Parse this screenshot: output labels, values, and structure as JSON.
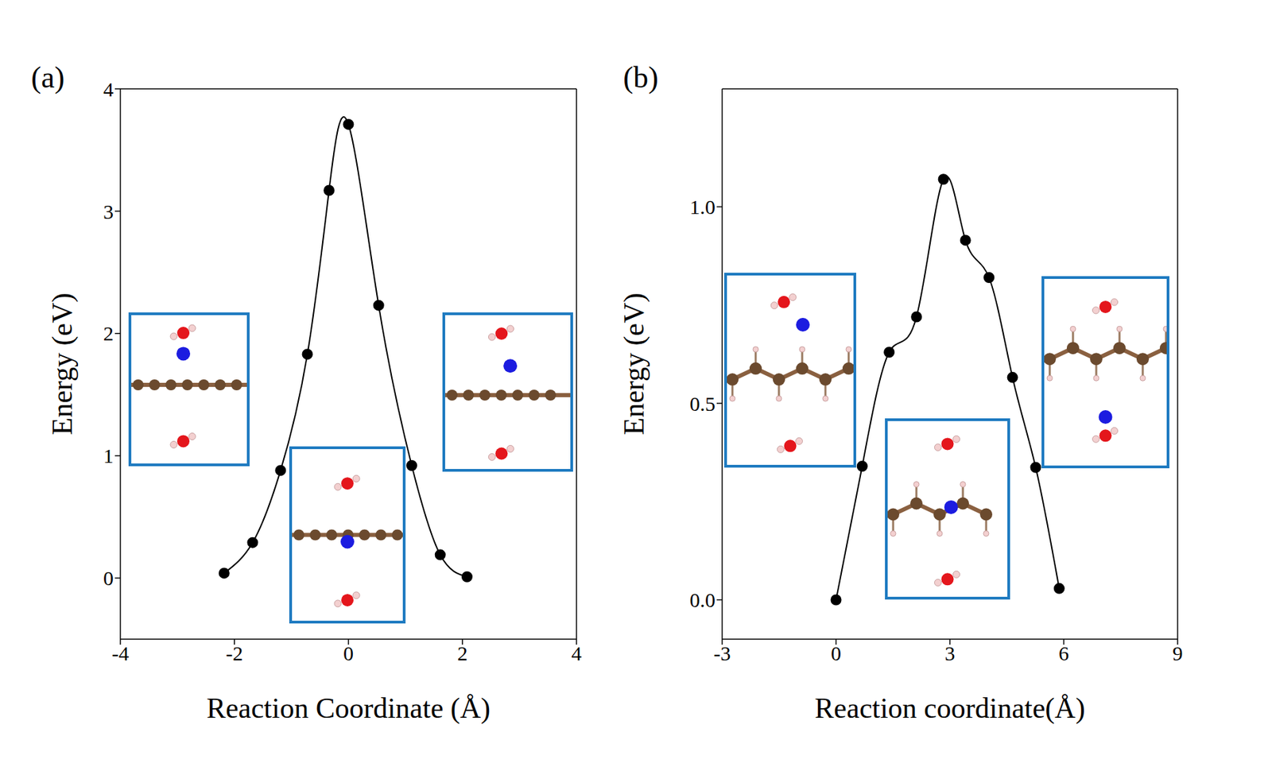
{
  "chart_data": [
    {
      "type": "line",
      "title": "(a)",
      "x_label": "Reaction Coordinate (Å)",
      "y_label": "Energy (eV)",
      "x": [
        -2.18,
        -1.68,
        -1.19,
        -0.72,
        -0.34,
        0,
        0.53,
        1.11,
        1.61,
        2.08
      ],
      "values": [
        0.04,
        0.29,
        0.88,
        1.83,
        3.17,
        3.71,
        2.23,
        0.92,
        0.19,
        0.01
      ],
      "color": "#000000",
      "marker": "circle",
      "line_style": "solid",
      "xlim": [
        -4,
        4
      ],
      "xticks": [
        -4,
        -2,
        0,
        2,
        4
      ],
      "ylim": [
        -0.5,
        4
      ],
      "yticks": [
        0,
        1,
        2,
        3,
        4
      ],
      "grid": false
    },
    {
      "type": "line",
      "title": "(b)",
      "x_label": "Reaction coordinate(Å)",
      "y_label": "Energy (eV)",
      "x": [
        0,
        0.69,
        1.4,
        2.12,
        2.83,
        3.41,
        4.03,
        4.65,
        5.26,
        5.88
      ],
      "values": [
        0,
        0.34,
        0.63,
        0.72,
        1.07,
        0.915,
        0.82,
        0.566,
        0.337,
        0.029
      ],
      "color": "#000000",
      "marker": "circle",
      "line_style": "solid",
      "xlim": [
        -3,
        9
      ],
      "xticks": [
        -3,
        0,
        3,
        6,
        9
      ],
      "ylim": [
        -0.1,
        1.3
      ],
      "yticks": [
        {
          "value": 0,
          "label": "0.0"
        },
        {
          "value": 0.5,
          "label": "0.5"
        },
        {
          "value": 1,
          "label": "1.0"
        }
      ],
      "grid": false
    }
  ]
}
